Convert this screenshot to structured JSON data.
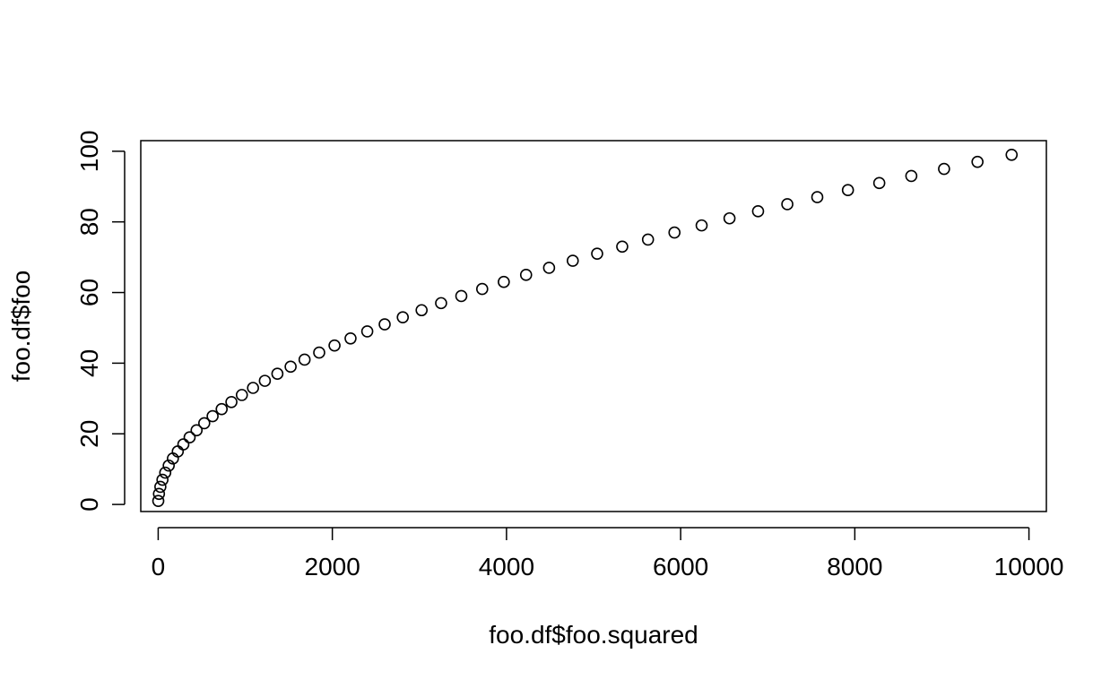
{
  "chart_data": {
    "type": "scatter",
    "xlabel": "foo.df$foo.squared",
    "ylabel": "foo.df$foo",
    "xlim": [
      -200,
      10200
    ],
    "ylim": [
      -2,
      103
    ],
    "x_ticks": [
      0,
      2000,
      4000,
      6000,
      8000,
      10000
    ],
    "x_tick_labels": [
      "0",
      "2000",
      "4000",
      "6000",
      "8000",
      "10000"
    ],
    "y_ticks": [
      0,
      20,
      40,
      60,
      80,
      100
    ],
    "y_tick_labels": [
      "0",
      "20",
      "40",
      "60",
      "80",
      "100"
    ],
    "marker": "open-circle",
    "grid": false,
    "colors": {
      "point": "#000000",
      "axis": "#000000",
      "background": "#ffffff"
    },
    "points": [
      {
        "x": 1,
        "y": 1
      },
      {
        "x": 9,
        "y": 3
      },
      {
        "x": 25,
        "y": 5
      },
      {
        "x": 49,
        "y": 7
      },
      {
        "x": 81,
        "y": 9
      },
      {
        "x": 121,
        "y": 11
      },
      {
        "x": 169,
        "y": 13
      },
      {
        "x": 225,
        "y": 15
      },
      {
        "x": 289,
        "y": 17
      },
      {
        "x": 361,
        "y": 19
      },
      {
        "x": 441,
        "y": 21
      },
      {
        "x": 529,
        "y": 23
      },
      {
        "x": 625,
        "y": 25
      },
      {
        "x": 729,
        "y": 27
      },
      {
        "x": 841,
        "y": 29
      },
      {
        "x": 961,
        "y": 31
      },
      {
        "x": 1089,
        "y": 33
      },
      {
        "x": 1225,
        "y": 35
      },
      {
        "x": 1369,
        "y": 37
      },
      {
        "x": 1521,
        "y": 39
      },
      {
        "x": 1681,
        "y": 41
      },
      {
        "x": 1849,
        "y": 43
      },
      {
        "x": 2025,
        "y": 45
      },
      {
        "x": 2209,
        "y": 47
      },
      {
        "x": 2401,
        "y": 49
      },
      {
        "x": 2601,
        "y": 51
      },
      {
        "x": 2809,
        "y": 53
      },
      {
        "x": 3025,
        "y": 55
      },
      {
        "x": 3249,
        "y": 57
      },
      {
        "x": 3481,
        "y": 59
      },
      {
        "x": 3721,
        "y": 61
      },
      {
        "x": 3969,
        "y": 63
      },
      {
        "x": 4225,
        "y": 65
      },
      {
        "x": 4489,
        "y": 67
      },
      {
        "x": 4761,
        "y": 69
      },
      {
        "x": 5041,
        "y": 71
      },
      {
        "x": 5329,
        "y": 73
      },
      {
        "x": 5625,
        "y": 75
      },
      {
        "x": 5929,
        "y": 77
      },
      {
        "x": 6241,
        "y": 79
      },
      {
        "x": 6561,
        "y": 81
      },
      {
        "x": 6889,
        "y": 83
      },
      {
        "x": 7225,
        "y": 85
      },
      {
        "x": 7569,
        "y": 87
      },
      {
        "x": 7921,
        "y": 89
      },
      {
        "x": 8281,
        "y": 91
      },
      {
        "x": 8649,
        "y": 93
      },
      {
        "x": 9025,
        "y": 95
      },
      {
        "x": 9409,
        "y": 97
      },
      {
        "x": 9801,
        "y": 99
      }
    ]
  }
}
